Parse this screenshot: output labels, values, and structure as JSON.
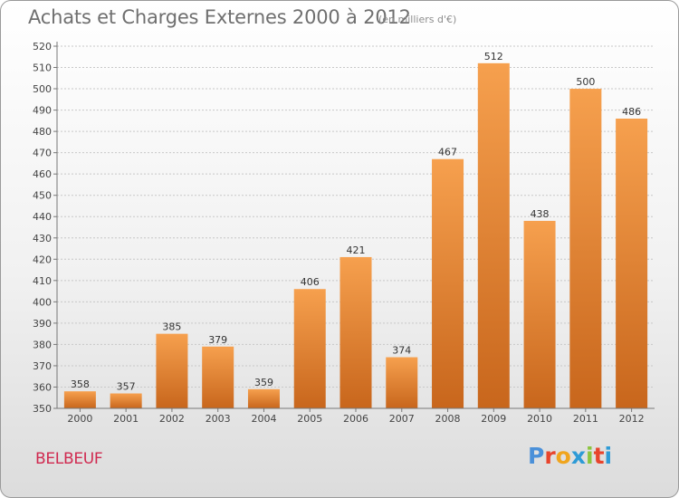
{
  "title": "Achats et Charges Externes 2000 à 2012",
  "subtitle": "(en milliers d'€)",
  "commune": "BELBEUF",
  "brand": {
    "letters": [
      "P",
      "r",
      "o",
      "x",
      "i",
      "t",
      "i"
    ],
    "colors": [
      "#4a90d9",
      "#e8442c",
      "#f0a51e",
      "#2e9bd6",
      "#8bc53f",
      "#e8442c",
      "#2e9bd6"
    ]
  },
  "colors": {
    "bar_top": "#f6a04e",
    "bar_bottom": "#c8661c",
    "grid": "#c8c8c8",
    "axis": "#777777"
  },
  "chart_data": {
    "type": "bar",
    "categories": [
      "2000",
      "2001",
      "2002",
      "2003",
      "2004",
      "2005",
      "2006",
      "2007",
      "2008",
      "2009",
      "2010",
      "2011",
      "2012"
    ],
    "values": [
      358,
      357,
      385,
      379,
      359,
      406,
      421,
      374,
      467,
      512,
      438,
      500,
      486
    ],
    "value_labels": [
      "358",
      "357",
      "385",
      "379",
      "359",
      "406",
      "421",
      "374",
      "467",
      "512",
      "438",
      "500",
      "486"
    ],
    "yticks": [
      "350",
      "360",
      "370",
      "380",
      "390",
      "400",
      "410",
      "420",
      "430",
      "440",
      "450",
      "460",
      "470",
      "480",
      "490",
      "500",
      "510",
      "520"
    ],
    "ylim": [
      350,
      520
    ],
    "grid": true,
    "title": "Achats et Charges Externes 2000 à 2012",
    "xlabel": "",
    "ylabel": ""
  }
}
